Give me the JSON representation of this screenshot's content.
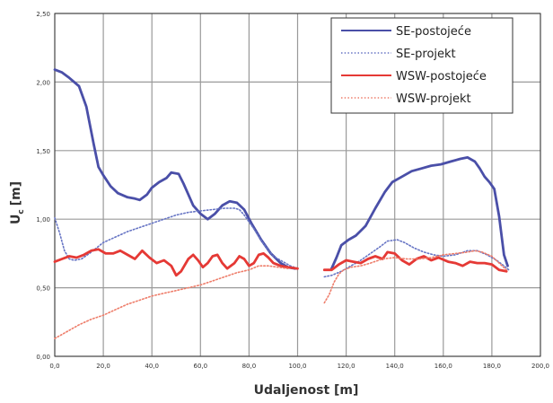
{
  "chart_data": {
    "type": "line",
    "xlabel": "Udaljenost [m]",
    "ylabel": "U",
    "ylabel_sub": "c",
    "ylabel_unit": "[m]",
    "xlim": [
      0,
      200
    ],
    "ylim": [
      0,
      2.5
    ],
    "xticks": [
      0,
      20,
      40,
      60,
      80,
      100,
      120,
      140,
      160,
      180,
      200
    ],
    "xtick_labels": [
      "0,0",
      "20,0",
      "40,0",
      "60,0",
      "80,0",
      "100,0",
      "120,0",
      "140,0",
      "160,0",
      "180,0",
      "200,0"
    ],
    "yticks": [
      0,
      0.5,
      1,
      1.5,
      2,
      2.5
    ],
    "ytick_labels": [
      "0,00",
      "0,50",
      "1,00",
      "1,50",
      "2,00",
      "2,50"
    ],
    "grid": true,
    "legend_position": "top-right",
    "series": [
      {
        "name": "SE-postojeće",
        "color": "#4a4fa8",
        "style": "solid",
        "segments": [
          [
            [
              0,
              2.09
            ],
            [
              3,
              2.07
            ],
            [
              6,
              2.03
            ],
            [
              10,
              1.97
            ],
            [
              13,
              1.82
            ],
            [
              16,
              1.55
            ],
            [
              18,
              1.38
            ],
            [
              20,
              1.32
            ],
            [
              23,
              1.24
            ],
            [
              26,
              1.19
            ],
            [
              30,
              1.16
            ],
            [
              33,
              1.15
            ],
            [
              35,
              1.14
            ],
            [
              38,
              1.18
            ],
            [
              40,
              1.23
            ],
            [
              43,
              1.27
            ],
            [
              46,
              1.3
            ],
            [
              48,
              1.34
            ],
            [
              51,
              1.33
            ],
            [
              53,
              1.26
            ],
            [
              55,
              1.18
            ],
            [
              57,
              1.1
            ],
            [
              60,
              1.04
            ],
            [
              63,
              1.0
            ],
            [
              66,
              1.04
            ],
            [
              69,
              1.1
            ],
            [
              72,
              1.13
            ],
            [
              75,
              1.12
            ],
            [
              78,
              1.07
            ],
            [
              81,
              0.97
            ],
            [
              85,
              0.85
            ],
            [
              89,
              0.75
            ],
            [
              93,
              0.68
            ],
            [
              96,
              0.65
            ],
            [
              99,
              0.64
            ]
          ],
          [
            [
              114,
              0.64
            ],
            [
              116,
              0.72
            ],
            [
              118,
              0.81
            ],
            [
              121,
              0.85
            ],
            [
              124,
              0.88
            ],
            [
              128,
              0.95
            ],
            [
              132,
              1.08
            ],
            [
              136,
              1.2
            ],
            [
              139,
              1.27
            ],
            [
              143,
              1.31
            ],
            [
              147,
              1.35
            ],
            [
              151,
              1.37
            ],
            [
              155,
              1.39
            ],
            [
              159,
              1.4
            ],
            [
              163,
              1.42
            ],
            [
              167,
              1.44
            ],
            [
              170,
              1.45
            ],
            [
              173,
              1.42
            ],
            [
              175,
              1.37
            ],
            [
              177,
              1.31
            ],
            [
              179,
              1.27
            ],
            [
              181,
              1.22
            ],
            [
              183,
              1.02
            ],
            [
              185,
              0.74
            ],
            [
              186.5,
              0.66
            ]
          ]
        ]
      },
      {
        "name": "SE-projekt",
        "color": "#6674c4",
        "style": "dotted",
        "segments": [
          [
            [
              0,
              1.01
            ],
            [
              2,
              0.9
            ],
            [
              4,
              0.77
            ],
            [
              6,
              0.71
            ],
            [
              8,
              0.7
            ],
            [
              11,
              0.71
            ],
            [
              15,
              0.76
            ],
            [
              20,
              0.83
            ],
            [
              25,
              0.87
            ],
            [
              30,
              0.91
            ],
            [
              35,
              0.94
            ],
            [
              40,
              0.97
            ],
            [
              45,
              1.0
            ],
            [
              50,
              1.03
            ],
            [
              55,
              1.05
            ],
            [
              60,
              1.06
            ],
            [
              65,
              1.07
            ],
            [
              70,
              1.08
            ],
            [
              74,
              1.08
            ],
            [
              76,
              1.07
            ],
            [
              78,
              1.03
            ],
            [
              82,
              0.93
            ],
            [
              86,
              0.82
            ],
            [
              90,
              0.73
            ],
            [
              94,
              0.69
            ],
            [
              97,
              0.66
            ],
            [
              100,
              0.64
            ]
          ],
          [
            [
              111,
              0.58
            ],
            [
              114,
              0.59
            ],
            [
              118,
              0.62
            ],
            [
              122,
              0.66
            ],
            [
              126,
              0.7
            ],
            [
              130,
              0.75
            ],
            [
              134,
              0.8
            ],
            [
              137,
              0.84
            ],
            [
              141,
              0.85
            ],
            [
              144,
              0.83
            ],
            [
              148,
              0.79
            ],
            [
              152,
              0.76
            ],
            [
              156,
              0.74
            ],
            [
              160,
              0.73
            ],
            [
              165,
              0.74
            ],
            [
              170,
              0.77
            ],
            [
              174,
              0.77
            ],
            [
              178,
              0.74
            ],
            [
              182,
              0.7
            ],
            [
              185,
              0.66
            ],
            [
              187,
              0.63
            ]
          ]
        ]
      },
      {
        "name": "WSW-postojeće",
        "color": "#e53935",
        "style": "solid",
        "segments": [
          [
            [
              0,
              0.69
            ],
            [
              3,
              0.71
            ],
            [
              6,
              0.73
            ],
            [
              9,
              0.72
            ],
            [
              12,
              0.74
            ],
            [
              15,
              0.77
            ],
            [
              18,
              0.78
            ],
            [
              21,
              0.75
            ],
            [
              24,
              0.75
            ],
            [
              27,
              0.77
            ],
            [
              30,
              0.74
            ],
            [
              33,
              0.71
            ],
            [
              36,
              0.77
            ],
            [
              39,
              0.72
            ],
            [
              42,
              0.68
            ],
            [
              45,
              0.7
            ],
            [
              48,
              0.66
            ],
            [
              50,
              0.59
            ],
            [
              52,
              0.62
            ],
            [
              55,
              0.71
            ],
            [
              57,
              0.74
            ],
            [
              59,
              0.7
            ],
            [
              61,
              0.65
            ],
            [
              63,
              0.68
            ],
            [
              65,
              0.73
            ],
            [
              67,
              0.74
            ],
            [
              69,
              0.68
            ],
            [
              71,
              0.64
            ],
            [
              74,
              0.68
            ],
            [
              76,
              0.73
            ],
            [
              78,
              0.71
            ],
            [
              80,
              0.66
            ],
            [
              82,
              0.68
            ],
            [
              84,
              0.74
            ],
            [
              86,
              0.75
            ],
            [
              88,
              0.72
            ],
            [
              90,
              0.68
            ],
            [
              93,
              0.66
            ],
            [
              96,
              0.65
            ],
            [
              100,
              0.64
            ]
          ],
          [
            [
              111,
              0.63
            ],
            [
              114,
              0.63
            ],
            [
              117,
              0.67
            ],
            [
              120,
              0.7
            ],
            [
              123,
              0.69
            ],
            [
              126,
              0.68
            ],
            [
              129,
              0.71
            ],
            [
              132,
              0.73
            ],
            [
              135,
              0.71
            ],
            [
              137,
              0.76
            ],
            [
              140,
              0.75
            ],
            [
              143,
              0.7
            ],
            [
              146,
              0.67
            ],
            [
              149,
              0.71
            ],
            [
              152,
              0.73
            ],
            [
              155,
              0.7
            ],
            [
              158,
              0.72
            ],
            [
              162,
              0.69
            ],
            [
              165,
              0.68
            ],
            [
              168,
              0.66
            ],
            [
              171,
              0.69
            ],
            [
              174,
              0.68
            ],
            [
              177,
              0.68
            ],
            [
              180,
              0.67
            ],
            [
              183,
              0.63
            ],
            [
              186,
              0.62
            ]
          ]
        ]
      },
      {
        "name": "WSW-projekt",
        "color": "#ee7d6a",
        "style": "dotted",
        "segments": [
          [
            [
              0,
              0.13
            ],
            [
              3,
              0.16
            ],
            [
              6,
              0.19
            ],
            [
              10,
              0.23
            ],
            [
              15,
              0.27
            ],
            [
              20,
              0.3
            ],
            [
              25,
              0.34
            ],
            [
              30,
              0.38
            ],
            [
              35,
              0.41
            ],
            [
              40,
              0.44
            ],
            [
              45,
              0.46
            ],
            [
              50,
              0.48
            ],
            [
              55,
              0.5
            ],
            [
              60,
              0.52
            ],
            [
              65,
              0.55
            ],
            [
              70,
              0.58
            ],
            [
              75,
              0.61
            ],
            [
              80,
              0.63
            ],
            [
              84,
              0.66
            ],
            [
              88,
              0.66
            ],
            [
              92,
              0.65
            ],
            [
              96,
              0.64
            ]
          ],
          [
            [
              111,
              0.39
            ],
            [
              113,
              0.45
            ],
            [
              115,
              0.54
            ],
            [
              117,
              0.6
            ],
            [
              119,
              0.63
            ],
            [
              122,
              0.65
            ],
            [
              126,
              0.66
            ],
            [
              130,
              0.68
            ],
            [
              135,
              0.71
            ],
            [
              140,
              0.72
            ],
            [
              145,
              0.71
            ],
            [
              150,
              0.71
            ],
            [
              155,
              0.72
            ],
            [
              160,
              0.74
            ],
            [
              165,
              0.75
            ],
            [
              170,
              0.76
            ],
            [
              173,
              0.77
            ],
            [
              176,
              0.76
            ],
            [
              180,
              0.73
            ],
            [
              183,
              0.68
            ],
            [
              186,
              0.63
            ]
          ]
        ]
      }
    ]
  }
}
